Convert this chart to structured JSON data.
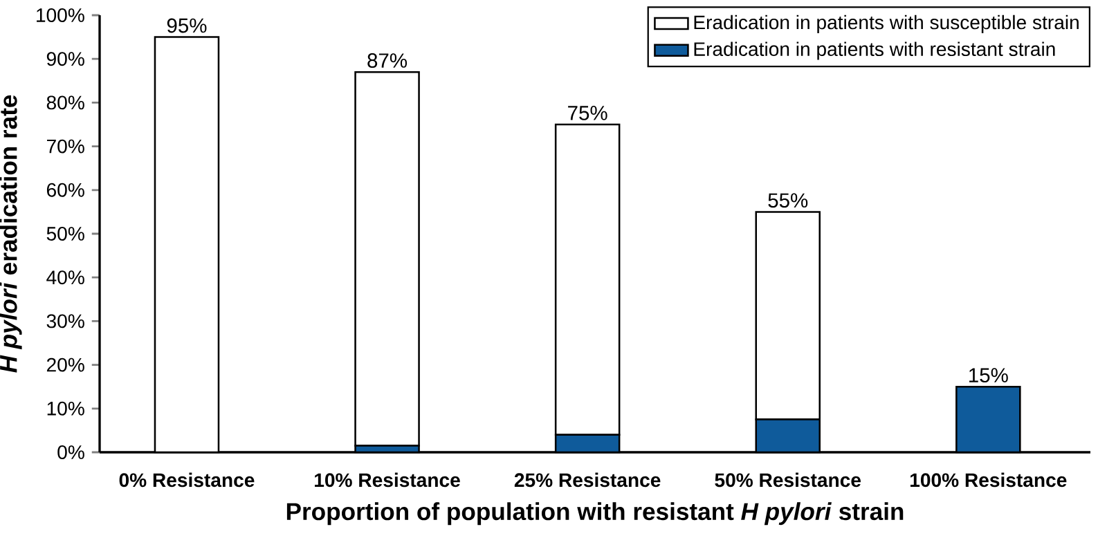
{
  "chart_data": {
    "type": "bar",
    "stacked": true,
    "xlabel": "Proportion of population with resistant *H pylori* strain",
    "ylabel": "*H pylori* eradication rate",
    "categories": [
      "0% Resistance",
      "10% Resistance",
      "25% Resistance",
      "50% Resistance",
      "100% Resistance"
    ],
    "series": [
      {
        "name": "Eradication in patients with resistant strain",
        "color": "#0f5b9b",
        "values": [
          0,
          1.5,
          4,
          7.5,
          15
        ]
      },
      {
        "name": "Eradication in patients with susceptible strain",
        "color": "#ffffff",
        "values": [
          95,
          85.5,
          71,
          47.5,
          0
        ]
      }
    ],
    "totals": [
      "95%",
      "87%",
      "75%",
      "55%",
      "15%"
    ],
    "ylim": [
      0,
      100
    ],
    "yticks": [
      {
        "value": 0,
        "label": "0%"
      },
      {
        "value": 10,
        "label": "10%"
      },
      {
        "value": 20,
        "label": "20%"
      },
      {
        "value": 30,
        "label": "30%"
      },
      {
        "value": 40,
        "label": "40%"
      },
      {
        "value": 50,
        "label": "50%"
      },
      {
        "value": 60,
        "label": "60%"
      },
      {
        "value": 70,
        "label": "70%"
      },
      {
        "value": 80,
        "label": "80%"
      },
      {
        "value": 90,
        "label": "90%"
      },
      {
        "value": 100,
        "label": "100%"
      }
    ],
    "grid": false,
    "legend": "top right"
  }
}
